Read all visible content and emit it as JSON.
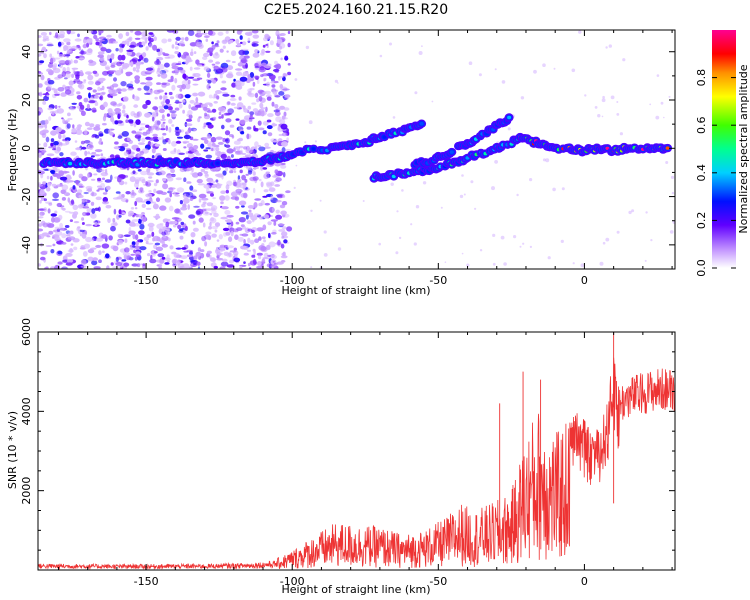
{
  "title": "C2E5.2024.160.21.15.R20",
  "chart_data": [
    {
      "type": "heatmap",
      "name": "spectrogram",
      "xlabel": "Height of straight line (km)",
      "ylabel": "Frequency (Hz)",
      "xlim": [
        -187,
        31
      ],
      "ylim": [
        -50,
        49
      ],
      "xticks": [
        -150,
        -100,
        -50,
        0
      ],
      "yticks": [
        -40,
        -20,
        0,
        20,
        40
      ],
      "colorbar": {
        "label": "Normalized spectral amplitude",
        "range": [
          0,
          1
        ],
        "ticks": [
          "0.0",
          "0.2",
          "0.4",
          "0.6",
          "0.8"
        ],
        "colors": [
          "#ffffff",
          "#a040ff",
          "#3000ff",
          "#00c0ff",
          "#00ff80",
          "#40ff00",
          "#ffff00",
          "#ffa000",
          "#ff0000",
          "#ff0080"
        ]
      },
      "noise_region_x": [
        -187,
        -101
      ],
      "ridges": [
        {
          "points": [
            [
              -185,
              -6
            ],
            [
              -170,
              -6
            ],
            [
              -150,
              -6
            ],
            [
              -130,
              -6
            ],
            [
              -115,
              -6
            ],
            [
              -105,
              -4
            ],
            [
              -95,
              -1
            ],
            [
              -85,
              0
            ],
            [
              -75,
              2
            ],
            [
              -70,
              5
            ],
            [
              -60,
              8
            ],
            [
              -55,
              10
            ]
          ],
          "amp": 0.4
        },
        {
          "points": [
            [
              -72,
              -12
            ],
            [
              -60,
              -10
            ],
            [
              -50,
              -8
            ],
            [
              -40,
              -4
            ],
            [
              -30,
              0
            ],
            [
              -22,
              4
            ]
          ],
          "amp": 0.45
        },
        {
          "points": [
            [
              -58,
              -7
            ],
            [
              -50,
              -4
            ],
            [
              -40,
              2
            ],
            [
              -32,
              8
            ],
            [
              -25,
              13
            ]
          ],
          "amp": 0.35
        },
        {
          "points": [
            [
              -22,
              4
            ],
            [
              -15,
              2
            ],
            [
              -8,
              0
            ],
            [
              0,
              -1
            ],
            [
              5,
              0
            ],
            [
              10,
              -1
            ],
            [
              15,
              0
            ],
            [
              20,
              0
            ],
            [
              30,
              0
            ]
          ],
          "amp": 0.85
        }
      ]
    },
    {
      "type": "line",
      "name": "snr",
      "xlabel": "Height of straight line (km)",
      "ylabel": "SNR (10 * v/v)",
      "xlim": [
        -187,
        31
      ],
      "ylim": [
        0,
        6000
      ],
      "xticks": [
        -150,
        -100,
        -50,
        0
      ],
      "yticks": [
        2000,
        4000,
        6000
      ],
      "color": "#ee3333",
      "envelope": [
        [
          -187,
          180
        ],
        [
          -160,
          160
        ],
        [
          -130,
          170
        ],
        [
          -115,
          200
        ],
        [
          -106,
          260
        ],
        [
          -100,
          500
        ],
        [
          -92,
          900
        ],
        [
          -85,
          1200
        ],
        [
          -78,
          1150
        ],
        [
          -70,
          1100
        ],
        [
          -62,
          900
        ],
        [
          -55,
          1000
        ],
        [
          -48,
          1300
        ],
        [
          -42,
          1700
        ],
        [
          -38,
          1500
        ],
        [
          -33,
          1650
        ],
        [
          -29,
          1800
        ],
        [
          -25,
          2000
        ],
        [
          -21,
          3100
        ],
        [
          -18,
          3800
        ],
        [
          -15,
          4200
        ],
        [
          -12,
          3600
        ],
        [
          -9,
          3500
        ],
        [
          -5,
          3900
        ],
        [
          -2,
          4100
        ],
        [
          2,
          3500
        ],
        [
          5,
          3600
        ],
        [
          8,
          4300
        ],
        [
          10,
          5600
        ],
        [
          12,
          4600
        ],
        [
          16,
          4800
        ],
        [
          20,
          4900
        ],
        [
          25,
          5000
        ],
        [
          31,
          5000
        ]
      ],
      "peaks": [
        [
          -29,
          4200
        ],
        [
          -21,
          5000
        ],
        [
          -15,
          4800
        ],
        [
          10,
          6000
        ]
      ]
    }
  ]
}
